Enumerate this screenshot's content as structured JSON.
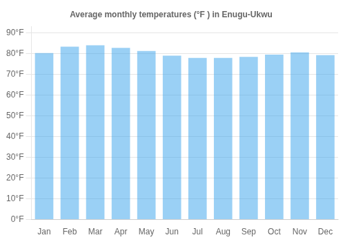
{
  "chart_data": {
    "type": "bar",
    "title": "Average monthly temperatures (°F ) in Enugu-Ukwu",
    "categories": [
      "Jan",
      "Feb",
      "Mar",
      "Apr",
      "May",
      "Jun",
      "Jul",
      "Aug",
      "Sep",
      "Oct",
      "Nov",
      "Dec"
    ],
    "values": [
      80.2,
      83.3,
      84.0,
      82.7,
      81.2,
      79.0,
      77.9,
      77.9,
      78.4,
      79.5,
      80.6,
      79.2
    ],
    "ylim": [
      0,
      93
    ],
    "yticks": [
      {
        "value": 0,
        "label": "0°F"
      },
      {
        "value": 10,
        "label": "10°F"
      },
      {
        "value": 20,
        "label": "20°F"
      },
      {
        "value": 30,
        "label": "30°F"
      },
      {
        "value": 40,
        "label": "40°F"
      },
      {
        "value": 50,
        "label": "50°F"
      },
      {
        "value": 60,
        "label": "60°F"
      },
      {
        "value": 70,
        "label": "70°F"
      },
      {
        "value": 80,
        "label": "80°F"
      },
      {
        "value": 90,
        "label": "90°F"
      }
    ],
    "grid": true
  }
}
